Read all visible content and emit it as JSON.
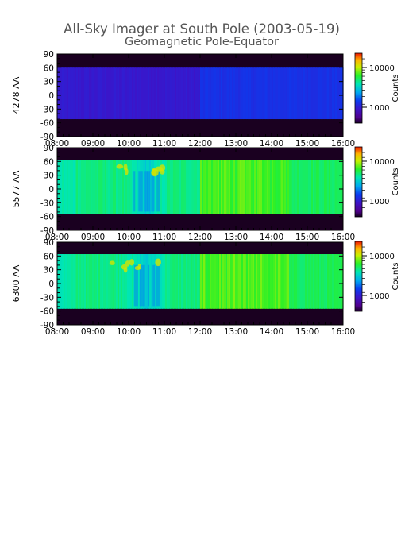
{
  "chart_data": {
    "type": "heatmap",
    "title": "All-Sky Imager at South Pole (2003-05-19)",
    "subtitle": "Geomagnetic Pole-Equator",
    "x_ticks": [
      "08:00",
      "09:00",
      "10:00",
      "11:00",
      "12:00",
      "13:00",
      "14:00",
      "15:00",
      "16:00"
    ],
    "y_ticks": [
      "90",
      "60",
      "30",
      "0",
      "-30",
      "-60",
      "-90"
    ],
    "xlim": [
      "08:00",
      "16:00"
    ],
    "ylim": [
      -90,
      90
    ],
    "colorbar": {
      "label": "Counts",
      "scale": "log",
      "ticks": [
        "10000",
        "1000"
      ]
    },
    "panels": [
      {
        "ylabel": "4278 AA",
        "data_lat_range": [
          -52,
          62
        ],
        "base_level": "low",
        "event_time": "10:30"
      },
      {
        "ylabel": "5577 AA",
        "data_lat_range": [
          -55,
          63
        ],
        "base_level": "high",
        "event_time": "10:30"
      },
      {
        "ylabel": "6300 AA",
        "data_lat_range": [
          -55,
          64
        ],
        "base_level": "high",
        "event_time": "10:30"
      }
    ]
  }
}
